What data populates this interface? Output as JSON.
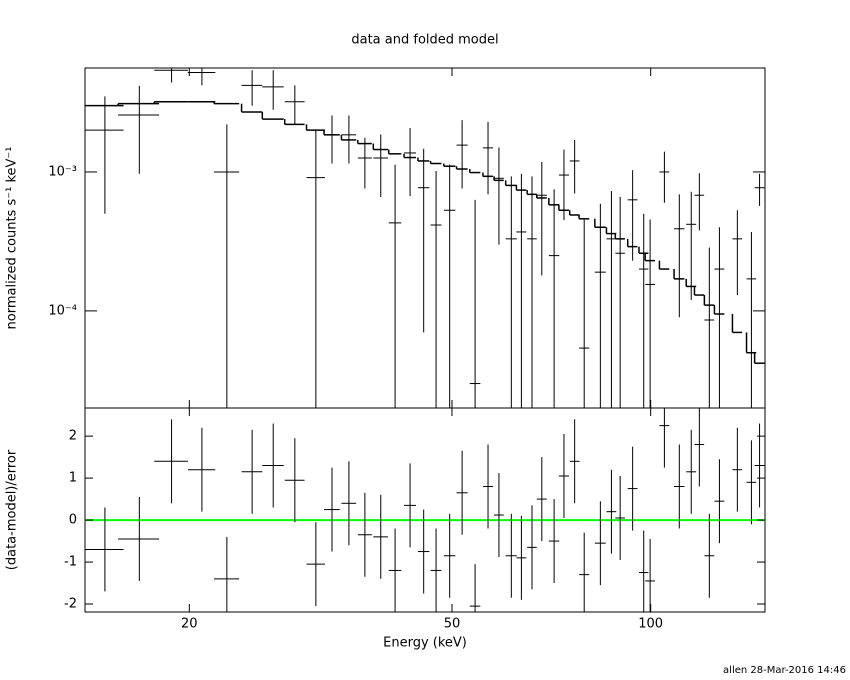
{
  "footer": "allen 28-Mar-2016 14:46",
  "chart_data": [
    {
      "type": "errorbar",
      "title": "data and folded model",
      "ylabel": "normalized counts s⁻¹ keV⁻¹",
      "xscale": "log",
      "yscale": "log",
      "xlim": [
        13.9,
        149
      ],
      "ylim": [
        2e-05,
        0.0056
      ],
      "yticks": [
        {
          "value": 0.001,
          "label": "10⁻³"
        },
        {
          "value": 0.0001,
          "label": "10⁻⁴"
        }
      ],
      "color": "#000000",
      "x": [
        14.9,
        16.8,
        18.8,
        20.9,
        22.8,
        24.9,
        26.8,
        28.9,
        31.1,
        32.9,
        34.9,
        36.9,
        39.0,
        41.0,
        43.2,
        45.3,
        47.3,
        49.6,
        51.8,
        54.2,
        56.7,
        58.9,
        61.5,
        63.7,
        66.1,
        68.4,
        71.4,
        73.9,
        76.7,
        79.3,
        83.9,
        87.2,
        89.9,
        93.9,
        97.6,
        99.8,
        104.9,
        110.5,
        115.2,
        118.5,
        122.7,
        127.1,
        135.3,
        142.1,
        146.2
      ],
      "xerr": [
        1.0,
        1.2,
        1.1,
        1.0,
        1.0,
        0.9,
        1.0,
        1.0,
        1.0,
        0.9,
        0.9,
        0.9,
        1.0,
        0.9,
        0.9,
        0.9,
        0.9,
        1.0,
        1.0,
        1.0,
        1.0,
        1.0,
        1.2,
        1.1,
        1.1,
        1.2,
        1.3,
        1.3,
        1.3,
        1.4,
        1.6,
        1.5,
        1.5,
        1.6,
        1.6,
        1.7,
        1.8,
        2.0,
        2.0,
        2.0,
        2.1,
        2.2,
        2.3,
        2.4,
        2.5
      ],
      "y": [
        0.002,
        0.00257,
        0.0054,
        0.0052,
        0.001,
        0.0042,
        0.0041,
        0.0032,
        0.00091,
        0.00185,
        0.00185,
        0.00126,
        0.00126,
        0.00043,
        0.00137,
        0.00077,
        0.000415,
        0.00053,
        0.00156,
        3e-05,
        0.00149,
        0.0009,
        0.00033,
        0.00037,
        0.00033,
        0.00068,
        0.00025,
        0.00095,
        0.0012,
        5.4e-05,
        0.00019,
        0.00033,
        0.00026,
        0.00063,
        0.0002,
        0.000155,
        0.001,
        0.00039,
        0.00042,
        0.00068,
        8.6e-05,
        0.0002,
        0.00033,
        0.00017,
        0.00077
      ],
      "yerr": [
        0.0015,
        0.0016,
        0.001,
        0.001,
        0.0012,
        0.0012,
        0.0013,
        0.001,
        0.0011,
        0.0007,
        0.0007,
        0.0005,
        0.0006,
        0.0007,
        0.0007,
        0.0007,
        0.0006,
        0.0006,
        0.0008,
        0.0006,
        0.0008,
        0.0006,
        0.0006,
        0.0006,
        0.0006,
        0.0005,
        0.0005,
        0.0005,
        0.0005,
        0.0004,
        0.0004,
        0.0004,
        0.0004,
        0.0004,
        0.0003,
        0.0003,
        0.0004,
        0.0003,
        0.0003,
        0.0003,
        0.0002,
        0.0002,
        0.0002,
        0.0002,
        0.0002
      ],
      "model": {
        "color": "#000000",
        "values": [
          0.003,
          0.0031,
          0.0032,
          0.0032,
          0.0031,
          0.0027,
          0.0024,
          0.0022,
          0.002,
          0.00185,
          0.0017,
          0.0016,
          0.00145,
          0.00135,
          0.00127,
          0.0012,
          0.00115,
          0.0011,
          0.00105,
          0.00099,
          0.00093,
          0.00087,
          0.0008,
          0.00074,
          0.00069,
          0.00065,
          0.00058,
          0.00053,
          0.00049,
          0.00046,
          0.0004,
          0.00036,
          0.00033,
          0.00029,
          0.00026,
          0.00023,
          0.0002,
          0.00017,
          0.00015,
          0.00013,
          0.00011,
          9.5e-05,
          7e-05,
          5e-05,
          4.2e-05
        ]
      }
    },
    {
      "type": "errorbar",
      "ylabel": "(data-model)/error",
      "xlabel": "Energy (keV)",
      "xscale": "log",
      "yscale": "linear",
      "xlim": [
        13.9,
        149
      ],
      "xticks": [
        20,
        50,
        100
      ],
      "ylim": [
        -2.19,
        2.67
      ],
      "yticks": [
        -2,
        -1,
        0,
        1,
        2
      ],
      "color": "#000000",
      "x": [
        14.9,
        16.8,
        18.8,
        20.9,
        22.8,
        24.9,
        26.8,
        28.9,
        31.1,
        32.9,
        34.9,
        36.9,
        39.0,
        41.0,
        43.2,
        45.3,
        47.3,
        49.6,
        51.8,
        54.2,
        56.7,
        58.9,
        61.5,
        63.7,
        66.1,
        68.4,
        71.4,
        73.9,
        76.7,
        79.3,
        83.9,
        87.2,
        89.9,
        93.9,
        97.6,
        99.8,
        104.9,
        110.5,
        115.2,
        118.5,
        122.7,
        127.1,
        135.3,
        142.1,
        146.2
      ],
      "xerr": [
        1.0,
        1.2,
        1.1,
        1.0,
        1.0,
        0.9,
        1.0,
        1.0,
        1.0,
        0.9,
        0.9,
        0.9,
        1.0,
        0.9,
        0.9,
        0.9,
        0.9,
        1.0,
        1.0,
        1.0,
        1.0,
        1.0,
        1.2,
        1.1,
        1.1,
        1.2,
        1.3,
        1.3,
        1.3,
        1.4,
        1.6,
        1.5,
        1.5,
        1.6,
        1.6,
        1.7,
        1.8,
        2.0,
        2.0,
        2.0,
        2.1,
        2.2,
        2.3,
        2.4,
        2.5
      ],
      "y": [
        -0.7,
        -0.45,
        1.4,
        1.2,
        -1.4,
        1.15,
        1.3,
        0.95,
        -1.05,
        0.25,
        0.4,
        -0.35,
        -0.4,
        -1.2,
        0.35,
        -0.75,
        -1.2,
        -0.85,
        0.65,
        -2.05,
        0.8,
        0.12,
        -0.85,
        -0.9,
        -0.65,
        0.5,
        -0.5,
        1.05,
        1.4,
        -1.3,
        -0.55,
        0.2,
        0.05,
        0.75,
        -1.25,
        -1.45,
        2.25,
        0.8,
        1.15,
        1.8,
        -0.85,
        0.45,
        1.2,
        0.9,
        1.3
      ],
      "yerr": [
        1,
        1,
        1,
        1,
        1,
        1,
        1,
        1,
        1,
        1,
        1,
        1,
        1,
        1,
        1,
        1,
        1,
        1,
        1,
        1,
        1,
        1,
        1,
        1,
        1,
        1,
        1,
        1,
        1,
        1,
        1,
        1,
        1,
        1,
        1,
        1,
        1,
        1,
        1,
        1,
        1,
        1,
        1,
        1,
        1
      ],
      "reference_line": {
        "value": 0,
        "color": "#00ff00"
      }
    }
  ]
}
